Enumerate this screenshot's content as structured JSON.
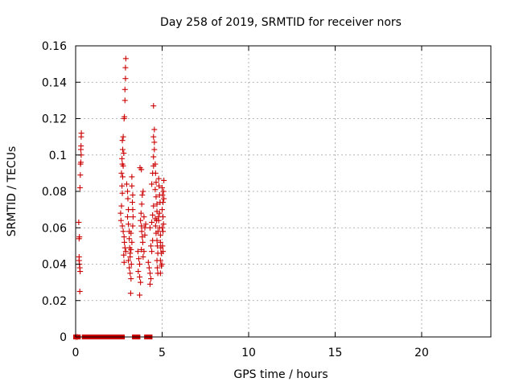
{
  "chart_data": {
    "type": "scatter",
    "title": "Day 258 of 2019, SRMTID for receiver nors",
    "xlabel": "GPS time / hours",
    "ylabel": "SRMTID / TECUs",
    "xlim": [
      0,
      24
    ],
    "ylim": [
      0,
      0.16
    ],
    "xticks": [
      0,
      5,
      10,
      15,
      20
    ],
    "yticks": [
      0,
      0.02,
      0.04,
      0.06,
      0.08,
      0.1,
      0.12,
      0.14,
      0.16
    ],
    "ytick_labels": [
      "0",
      "0.02",
      "0.04",
      "0.06",
      "0.08",
      "0.1",
      "0.12",
      "0.14",
      "0.16"
    ],
    "xtick_labels": [
      "0",
      "5",
      "10",
      "15",
      "20"
    ],
    "grid": true,
    "marker": "plus",
    "color": "#cc0000",
    "zero_ranges": [
      [
        0.0,
        0.15
      ],
      [
        0.5,
        2.7
      ],
      [
        3.4,
        3.6
      ],
      [
        4.1,
        4.3
      ]
    ],
    "series": [
      {
        "points": [
          [
            0.02,
            0.0
          ],
          [
            0.1,
            0.0
          ],
          [
            0.18,
            0.063
          ],
          [
            0.2,
            0.054
          ],
          [
            0.22,
            0.055
          ],
          [
            0.2,
            0.042
          ],
          [
            0.22,
            0.04
          ],
          [
            0.24,
            0.038
          ],
          [
            0.26,
            0.036
          ],
          [
            0.24,
            0.025
          ],
          [
            0.2,
            0.044
          ],
          [
            0.25,
            0.082
          ],
          [
            0.27,
            0.089
          ],
          [
            0.28,
            0.095
          ],
          [
            0.3,
            0.096
          ],
          [
            0.3,
            0.103
          ],
          [
            0.31,
            0.105
          ],
          [
            0.32,
            0.11
          ],
          [
            0.33,
            0.112
          ],
          [
            0.32,
            0.1
          ],
          [
            2.65,
            0.09
          ],
          [
            2.7,
            0.095
          ],
          [
            2.68,
            0.098
          ],
          [
            2.72,
            0.103
          ],
          [
            2.75,
            0.11
          ],
          [
            2.7,
            0.108
          ],
          [
            2.8,
            0.12
          ],
          [
            2.82,
            0.121
          ],
          [
            2.85,
            0.13
          ],
          [
            2.85,
            0.136
          ],
          [
            2.88,
            0.142
          ],
          [
            2.88,
            0.148
          ],
          [
            2.9,
            0.153
          ],
          [
            2.78,
            0.101
          ],
          [
            2.75,
            0.094
          ],
          [
            2.72,
            0.088
          ],
          [
            2.68,
            0.083
          ],
          [
            2.7,
            0.079
          ],
          [
            2.65,
            0.072
          ],
          [
            2.6,
            0.068
          ],
          [
            2.62,
            0.064
          ],
          [
            2.7,
            0.061
          ],
          [
            2.75,
            0.058
          ],
          [
            2.8,
            0.055
          ],
          [
            2.82,
            0.052
          ],
          [
            2.85,
            0.049
          ],
          [
            2.9,
            0.047
          ],
          [
            2.78,
            0.045
          ],
          [
            2.8,
            0.041
          ],
          [
            2.95,
            0.084
          ],
          [
            3.0,
            0.08
          ],
          [
            3.02,
            0.076
          ],
          [
            3.05,
            0.07
          ],
          [
            3.0,
            0.066
          ],
          [
            3.05,
            0.062
          ],
          [
            3.1,
            0.058
          ],
          [
            3.1,
            0.054
          ],
          [
            3.12,
            0.049
          ],
          [
            3.15,
            0.046
          ],
          [
            3.05,
            0.042
          ],
          [
            3.1,
            0.038
          ],
          [
            3.15,
            0.035
          ],
          [
            3.2,
            0.032
          ],
          [
            3.18,
            0.024
          ],
          [
            3.25,
            0.088
          ],
          [
            3.25,
            0.083
          ],
          [
            3.3,
            0.078
          ],
          [
            3.28,
            0.074
          ],
          [
            3.3,
            0.07
          ],
          [
            3.32,
            0.066
          ],
          [
            3.3,
            0.061
          ],
          [
            3.2,
            0.057
          ],
          [
            3.25,
            0.052
          ],
          [
            3.2,
            0.048
          ],
          [
            3.15,
            0.044
          ],
          [
            3.22,
            0.04
          ],
          [
            3.6,
            0.047
          ],
          [
            3.65,
            0.043
          ],
          [
            3.7,
            0.04
          ],
          [
            3.62,
            0.036
          ],
          [
            3.7,
            0.033
          ],
          [
            3.75,
            0.03
          ],
          [
            3.7,
            0.023
          ],
          [
            3.8,
            0.061
          ],
          [
            3.82,
            0.058
          ],
          [
            3.85,
            0.055
          ],
          [
            3.88,
            0.052
          ],
          [
            3.8,
            0.048
          ],
          [
            3.75,
            0.064
          ],
          [
            3.78,
            0.068
          ],
          [
            3.82,
            0.073
          ],
          [
            3.85,
            0.078
          ],
          [
            3.9,
            0.08
          ],
          [
            3.72,
            0.093
          ],
          [
            3.8,
            0.092
          ],
          [
            3.9,
            0.044
          ],
          [
            3.95,
            0.047
          ],
          [
            4.0,
            0.056
          ],
          [
            4.0,
            0.06
          ],
          [
            4.05,
            0.062
          ],
          [
            3.95,
            0.066
          ],
          [
            4.2,
            0.041
          ],
          [
            4.25,
            0.038
          ],
          [
            4.3,
            0.035
          ],
          [
            4.35,
            0.032
          ],
          [
            4.3,
            0.029
          ],
          [
            4.4,
            0.047
          ],
          [
            4.35,
            0.05
          ],
          [
            4.45,
            0.053
          ],
          [
            4.3,
            0.06
          ],
          [
            4.4,
            0.063
          ],
          [
            4.45,
            0.067
          ],
          [
            4.5,
            0.072
          ],
          [
            4.4,
            0.084
          ],
          [
            4.45,
            0.09
          ],
          [
            4.5,
            0.094
          ],
          [
            4.5,
            0.099
          ],
          [
            4.55,
            0.103
          ],
          [
            4.55,
            0.107
          ],
          [
            4.5,
            0.11
          ],
          [
            4.55,
            0.114
          ],
          [
            4.5,
            0.127
          ],
          [
            4.6,
            0.095
          ],
          [
            4.62,
            0.09
          ],
          [
            4.65,
            0.085
          ],
          [
            4.6,
            0.081
          ],
          [
            4.65,
            0.077
          ],
          [
            4.7,
            0.073
          ],
          [
            4.7,
            0.069
          ],
          [
            4.6,
            0.065
          ],
          [
            4.62,
            0.061
          ],
          [
            4.65,
            0.057
          ],
          [
            4.7,
            0.053
          ],
          [
            4.72,
            0.05
          ],
          [
            4.75,
            0.046
          ],
          [
            4.7,
            0.042
          ],
          [
            4.72,
            0.038
          ],
          [
            4.75,
            0.035
          ],
          [
            4.8,
            0.087
          ],
          [
            4.82,
            0.083
          ],
          [
            4.85,
            0.078
          ],
          [
            4.88,
            0.074
          ],
          [
            4.85,
            0.068
          ],
          [
            4.8,
            0.064
          ],
          [
            4.85,
            0.06
          ],
          [
            4.9,
            0.056
          ],
          [
            4.9,
            0.052
          ],
          [
            4.92,
            0.049
          ],
          [
            4.95,
            0.046
          ],
          [
            4.9,
            0.042
          ],
          [
            4.95,
            0.039
          ],
          [
            4.9,
            0.035
          ],
          [
            5.0,
            0.082
          ],
          [
            5.02,
            0.078
          ],
          [
            5.05,
            0.074
          ],
          [
            5.0,
            0.07
          ],
          [
            5.05,
            0.066
          ],
          [
            5.08,
            0.062
          ],
          [
            5.05,
            0.058
          ],
          [
            5.1,
            0.086
          ],
          [
            5.08,
            0.08
          ],
          [
            5.1,
            0.076
          ],
          [
            5.0,
            0.06
          ],
          [
            5.02,
            0.05
          ],
          [
            5.05,
            0.047
          ],
          [
            4.98,
            0.04
          ],
          [
            4.78,
            0.066
          ],
          [
            4.76,
            0.058
          ],
          [
            4.68,
            0.064
          ]
        ]
      }
    ]
  }
}
